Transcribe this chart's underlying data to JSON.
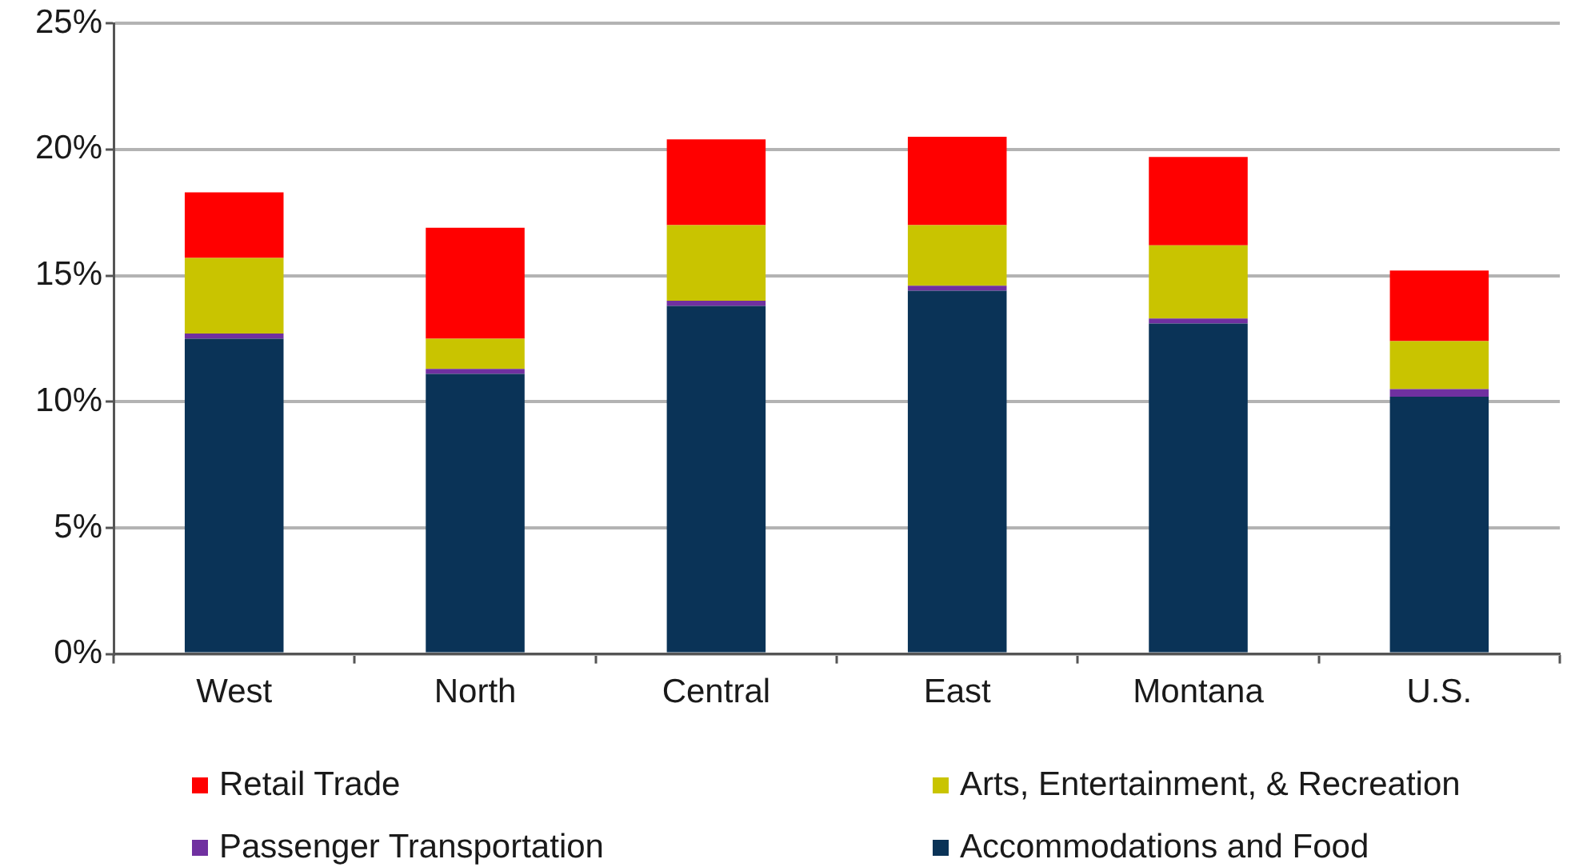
{
  "chart_data": {
    "type": "bar",
    "stacked": true,
    "categories": [
      "West",
      "North",
      "Central",
      "East",
      "Montana",
      "U.S."
    ],
    "series": [
      {
        "name": "Accommodations and Food",
        "color": "#0a3357",
        "values": [
          12.5,
          11.1,
          13.8,
          14.4,
          13.1,
          10.2
        ]
      },
      {
        "name": "Passenger Transportation",
        "color": "#7030a0",
        "values": [
          0.2,
          0.2,
          0.2,
          0.2,
          0.2,
          0.3
        ]
      },
      {
        "name": "Arts, Entertainment, & Recreation",
        "color": "#c9c400",
        "values": [
          3.0,
          1.2,
          3.0,
          2.4,
          2.9,
          1.9
        ]
      },
      {
        "name": "Retail Trade",
        "color": "#ff0000",
        "values": [
          2.6,
          4.4,
          3.4,
          3.5,
          3.5,
          2.8
        ]
      }
    ],
    "ylim": [
      0,
      25
    ],
    "yticks": [
      {
        "value": 0,
        "label": "0%"
      },
      {
        "value": 5,
        "label": "5%"
      },
      {
        "value": 10,
        "label": "10%"
      },
      {
        "value": 15,
        "label": "15%"
      },
      {
        "value": 20,
        "label": "20%"
      },
      {
        "value": 25,
        "label": "25%"
      }
    ],
    "grid": "y",
    "legend": "bottom"
  }
}
